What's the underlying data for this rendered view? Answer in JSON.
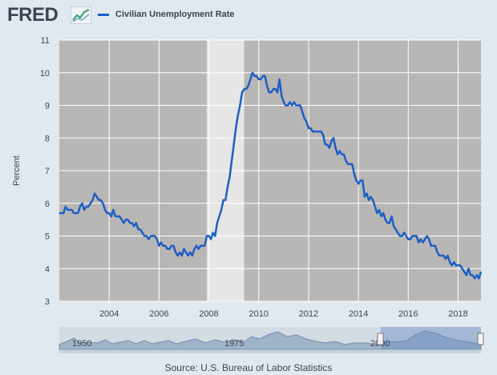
{
  "header": {
    "logo_text": "FRED",
    "series_label": "Civilian Unemployment Rate"
  },
  "colors": {
    "series": "#1f5fc2",
    "plot_bg": "#b9b6b6",
    "recession": "#e6e6e6",
    "page_bg": "#e1e9f0"
  },
  "navigator": {
    "labels": [
      "1950",
      "1975",
      "2000"
    ]
  },
  "source": "Source: U.S. Bureau of Labor Statistics",
  "chart_data": {
    "type": "line",
    "title": "",
    "xlabel": "",
    "ylabel": "Percent",
    "ylim": [
      3,
      11
    ],
    "xlim": [
      2002.0,
      2018.917
    ],
    "yticks": [
      3,
      4,
      5,
      6,
      7,
      8,
      9,
      10,
      11
    ],
    "xticks": [
      2004,
      2006,
      2008,
      2010,
      2012,
      2014,
      2016,
      2018
    ],
    "grid": true,
    "legend": "top-left",
    "recession": [
      2007.917,
      2009.417
    ],
    "series": [
      {
        "name": "Civilian Unemployment Rate",
        "x_start": 2002.0,
        "x_step": 0.0833333,
        "values": [
          5.7,
          5.7,
          5.7,
          5.9,
          5.8,
          5.8,
          5.8,
          5.7,
          5.7,
          5.7,
          5.9,
          6.0,
          5.8,
          5.9,
          5.9,
          6.0,
          6.1,
          6.3,
          6.2,
          6.1,
          6.1,
          6.0,
          5.8,
          5.7,
          5.7,
          5.6,
          5.8,
          5.6,
          5.6,
          5.6,
          5.5,
          5.4,
          5.5,
          5.5,
          5.4,
          5.4,
          5.3,
          5.4,
          5.2,
          5.2,
          5.1,
          5.0,
          5.0,
          4.9,
          5.0,
          5.0,
          5.0,
          4.9,
          4.7,
          4.8,
          4.7,
          4.7,
          4.6,
          4.6,
          4.7,
          4.7,
          4.5,
          4.4,
          4.5,
          4.4,
          4.6,
          4.5,
          4.4,
          4.5,
          4.4,
          4.6,
          4.7,
          4.6,
          4.7,
          4.7,
          4.7,
          5.0,
          5.0,
          4.9,
          5.1,
          5.0,
          5.4,
          5.6,
          5.8,
          6.1,
          6.1,
          6.5,
          6.8,
          7.3,
          7.8,
          8.3,
          8.7,
          9.0,
          9.4,
          9.5,
          9.5,
          9.6,
          9.8,
          10.0,
          9.9,
          9.9,
          9.8,
          9.8,
          9.9,
          9.9,
          9.6,
          9.4,
          9.4,
          9.5,
          9.5,
          9.4,
          9.8,
          9.3,
          9.1,
          9.0,
          9.0,
          9.1,
          9.0,
          9.1,
          9.0,
          9.0,
          9.0,
          8.8,
          8.6,
          8.5,
          8.3,
          8.3,
          8.2,
          8.2,
          8.2,
          8.2,
          8.2,
          8.1,
          7.8,
          7.8,
          7.7,
          7.9,
          8.0,
          7.7,
          7.5,
          7.6,
          7.5,
          7.5,
          7.3,
          7.2,
          7.2,
          7.2,
          6.9,
          6.7,
          6.6,
          6.7,
          6.7,
          6.2,
          6.3,
          6.1,
          6.2,
          6.1,
          5.9,
          5.7,
          5.8,
          5.6,
          5.7,
          5.5,
          5.4,
          5.4,
          5.6,
          5.3,
          5.2,
          5.1,
          5.0,
          5.0,
          5.1,
          5.0,
          4.9,
          4.9,
          5.0,
          5.0,
          5.0,
          4.8,
          4.9,
          4.8,
          4.9,
          5.0,
          4.9,
          4.7,
          4.7,
          4.7,
          4.5,
          4.4,
          4.4,
          4.4,
          4.3,
          4.4,
          4.2,
          4.1,
          4.2,
          4.1,
          4.1,
          4.1,
          4.0,
          3.9,
          3.8,
          4.0,
          3.8,
          3.8,
          3.7,
          3.8,
          3.7,
          3.9
        ]
      }
    ]
  }
}
